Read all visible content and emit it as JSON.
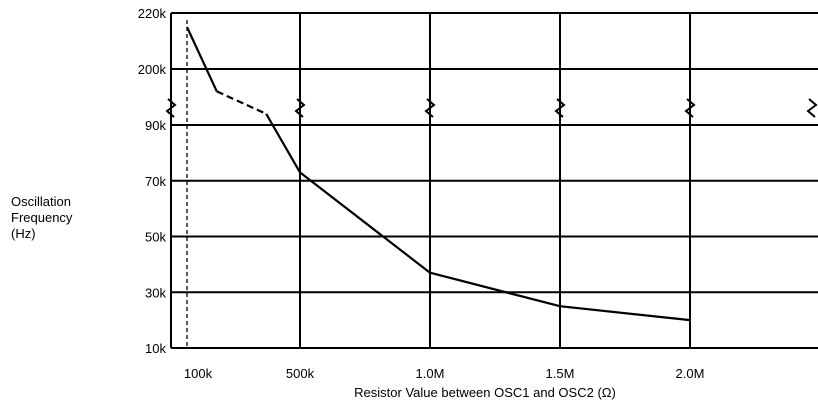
{
  "chart_data": {
    "type": "line",
    "ylabel_lines": [
      "Oscillation",
      "Frequency",
      "(Hz)"
    ],
    "xlabel": "Resistor Value between OSC1 and OSC2 (Ω)",
    "y_scale": "broken",
    "y_ticks_upper": [
      "220k",
      "200k"
    ],
    "y_ticks_lower": [
      "90k",
      "70k",
      "50k",
      "30k",
      "10k"
    ],
    "x_ticks": [
      "100k",
      "500k",
      "1.0M",
      "1.5M",
      "2.0M"
    ],
    "x_tick_values": [
      100000,
      500000,
      1000000,
      1500000,
      2000000
    ],
    "grid": true,
    "reference_line": {
      "x": 56000,
      "style": "dashed"
    },
    "series": [
      {
        "style": "solid",
        "points": [
          [
            56000,
            215000
          ],
          [
            180000,
            192000
          ]
        ]
      },
      {
        "style": "dashed",
        "points": [
          [
            180000,
            192000
          ],
          [
            370000,
            94000
          ]
        ]
      },
      {
        "style": "solid",
        "points": [
          [
            370000,
            94000
          ],
          [
            500000,
            73000
          ],
          [
            1000000,
            37000
          ],
          [
            1500000,
            25000
          ],
          [
            2000000,
            20000
          ]
        ]
      }
    ]
  }
}
